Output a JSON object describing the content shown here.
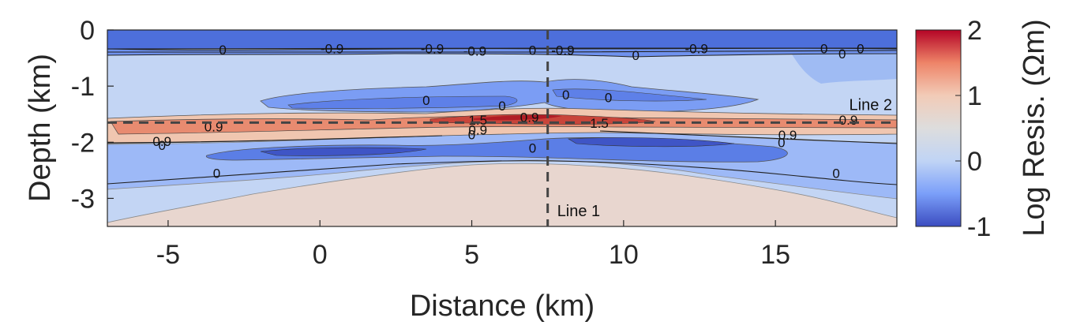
{
  "chart_data": {
    "type": "heatmap",
    "xlabel": "Distance (km)",
    "ylabel": "Depth (km)",
    "xlim": [
      -7,
      19
    ],
    "ylim": [
      -3.5,
      0
    ],
    "x_ticks": [
      -5,
      0,
      5,
      10,
      15
    ],
    "y_ticks": [
      0,
      -1,
      -2,
      -3
    ],
    "colorbar": {
      "label": "Log Resis. (Ωm)",
      "range": [
        -1,
        2
      ],
      "ticks": [
        2,
        1,
        0,
        -1
      ],
      "colormap": [
        "#3b4cc0",
        "#7b9ff9",
        "#c0d4f5",
        "#dddddd",
        "#f2cbb7",
        "#ee8468",
        "#b40426"
      ]
    },
    "profile_lines": [
      {
        "name": "Line 1",
        "orientation": "vertical",
        "x": 7.5
      },
      {
        "name": "Line 2",
        "orientation": "horizontal",
        "depth": -1.65
      }
    ],
    "layers": [
      {
        "depth_top": 0,
        "depth_bottom": -0.3,
        "log_resistivity": -0.9
      },
      {
        "depth_top": -0.35,
        "depth_bottom": -1.5,
        "log_resistivity": 0.2
      },
      {
        "depth_top": -1.2,
        "depth_bottom": -1.35,
        "log_resistivity": -0.3,
        "x_range": [
          -1,
          12
        ]
      },
      {
        "depth_top": -1.55,
        "depth_bottom": -1.75,
        "log_resistivity": 1.5,
        "x_range": [
          3.5,
          11
        ]
      },
      {
        "depth_top": -1.9,
        "depth_bottom": -2.3,
        "log_resistivity": -0.9,
        "x_range": [
          -3,
          15
        ]
      },
      {
        "depth_top": -2.4,
        "depth_bottom": -3.5,
        "log_resistivity": 0.5
      }
    ],
    "contour_labels": [
      {
        "text": "0",
        "x": -3.2,
        "y": -0.35
      },
      {
        "text": "-0.9",
        "x": 0.4,
        "y": -0.33
      },
      {
        "text": "-0.9",
        "x": 3.7,
        "y": -0.33
      },
      {
        "text": "-0.9",
        "x": 5.1,
        "y": -0.37
      },
      {
        "text": "0",
        "x": 7.0,
        "y": -0.36
      },
      {
        "text": "-0.9",
        "x": 8.0,
        "y": -0.36
      },
      {
        "text": "0",
        "x": 10.4,
        "y": -0.45
      },
      {
        "text": "-0.9",
        "x": 12.4,
        "y": -0.33
      },
      {
        "text": "0",
        "x": 16.6,
        "y": -0.33
      },
      {
        "text": "0",
        "x": 17.2,
        "y": -0.42
      },
      {
        "text": "0",
        "x": 17.8,
        "y": -0.33
      },
      {
        "text": "0",
        "x": 3.5,
        "y": -1.25
      },
      {
        "text": "0",
        "x": 6.0,
        "y": -1.35
      },
      {
        "text": "0",
        "x": 8.1,
        "y": -1.15
      },
      {
        "text": "0",
        "x": 9.5,
        "y": -1.2
      },
      {
        "text": "0.9",
        "x": -3.5,
        "y": -1.72
      },
      {
        "text": "0.9",
        "x": -5.2,
        "y": -1.98
      },
      {
        "text": "0",
        "x": -5.2,
        "y": -2.05
      },
      {
        "text": "1.5",
        "x": 5.2,
        "y": -1.6
      },
      {
        "text": "0.9",
        "x": 6.9,
        "y": -1.55
      },
      {
        "text": "1.5",
        "x": 9.2,
        "y": -1.66
      },
      {
        "text": "0.9",
        "x": 5.2,
        "y": -1.78
      },
      {
        "text": "0",
        "x": 5.0,
        "y": -1.86
      },
      {
        "text": "0",
        "x": 7.0,
        "y": -2.1
      },
      {
        "text": "0.9",
        "x": 15.4,
        "y": -1.87
      },
      {
        "text": "0",
        "x": 15.2,
        "y": -2.0
      },
      {
        "text": "0.9",
        "x": 17.4,
        "y": -1.6
      },
      {
        "text": "0",
        "x": -3.4,
        "y": -2.55
      },
      {
        "text": "0",
        "x": 17.0,
        "y": -2.55
      }
    ]
  }
}
